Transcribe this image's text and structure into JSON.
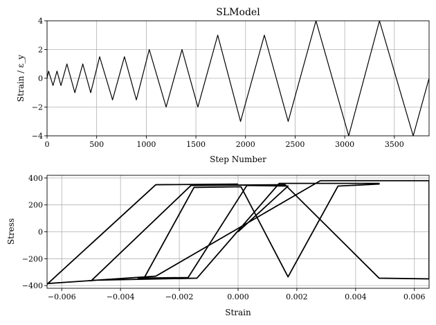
{
  "chart_data": [
    {
      "type": "line",
      "title": "SLModel",
      "xlabel": "Step Number",
      "ylabel": "Strain / ε_y",
      "xlim": [
        0,
        3850
      ],
      "ylim": [
        -4,
        4
      ],
      "xticks": [
        "0",
        "500",
        "1000",
        "1500",
        "2000",
        "2500",
        "3000",
        "3500"
      ],
      "yticks": [
        "−4",
        "−2",
        "0",
        "2",
        "4"
      ],
      "xtick_values": [
        0,
        500,
        1000,
        1500,
        2000,
        2500,
        3000,
        3500
      ],
      "ytick_values": [
        -4,
        -2,
        0,
        2,
        4
      ],
      "grid": true,
      "series": [
        {
          "color": "#000000",
          "x": [
            0,
            15,
            60,
            100,
            140,
            200,
            280,
            360,
            440,
            530,
            660,
            780,
            900,
            1030,
            1200,
            1360,
            1520,
            1720,
            1950,
            2190,
            2430,
            2710,
            3040,
            3350,
            3690,
            3850
          ],
          "y": [
            0,
            0.5,
            -0.5,
            0.5,
            -0.5,
            1,
            -1,
            1,
            -1,
            1.5,
            -1.5,
            1.5,
            -1.5,
            2,
            -2,
            2,
            -2,
            3,
            -3,
            3,
            -3,
            4,
            -4,
            4,
            -4,
            0
          ]
        }
      ]
    },
    {
      "type": "line",
      "title": "",
      "xlabel": "Strain",
      "ylabel": "Stress",
      "xlim": [
        -0.0065,
        0.0065
      ],
      "ylim": [
        -420,
        420
      ],
      "xticks": [
        "−0.006",
        "−0.004",
        "−0.002",
        "0.000",
        "0.002",
        "0.004",
        "0.006"
      ],
      "yticks": [
        "−400",
        "−200",
        "0",
        "200",
        "400"
      ],
      "xtick_values": [
        -0.006,
        -0.004,
        -0.002,
        0.0,
        0.002,
        0.004,
        0.006
      ],
      "ytick_values": [
        -400,
        -200,
        0,
        200,
        400
      ],
      "grid": true,
      "series": [
        {
          "color": "#000000",
          "x": [
            0.0,
            0.0017,
            0.0003,
            -0.0017,
            -0.0034,
            -0.0032,
            -0.0015,
            0.0001,
            0.0017,
            0.0034,
            0.0048,
            0.0048,
            0.0014,
            -0.0014,
            -0.0049,
            -0.005,
            -0.0016,
            0.0016,
            0.0048,
            0.0065,
            0.0065,
            0.0028,
            -0.0028,
            -0.0065,
            -0.0065,
            -0.0028,
            0.0
          ],
          "y": [
            0,
            340,
            345,
            -340,
            -345,
            -345,
            330,
            335,
            -335,
            340,
            355,
            360,
            360,
            -345,
            -360,
            -365,
            345,
            350,
            -345,
            -350,
            380,
            380,
            -330,
            -385,
            -390,
            350,
            355
          ]
        }
      ]
    }
  ]
}
